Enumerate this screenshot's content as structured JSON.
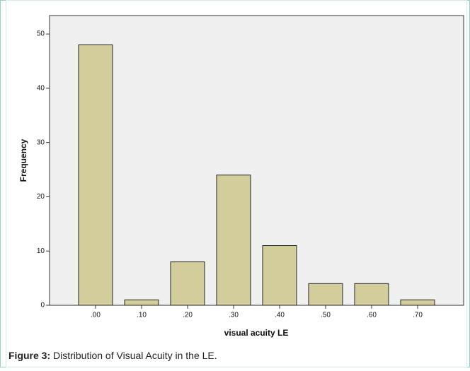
{
  "chart_data": {
    "type": "bar",
    "categories": [
      ".00",
      ".10",
      ".20",
      ".30",
      ".40",
      ".50",
      ".60",
      ".70"
    ],
    "values": [
      48,
      1,
      8,
      24,
      11,
      4,
      4,
      1
    ],
    "color": "#d3cd9c",
    "xlabel": "visual acuity LE",
    "ylabel": "Frequency",
    "ylim": [
      0,
      53.4
    ],
    "yticks": [
      0,
      10,
      20,
      30,
      40,
      50
    ],
    "grid": false
  },
  "caption": {
    "label": "Figure 3:",
    "text": "Distribution of Visual Acuity in the LE."
  }
}
